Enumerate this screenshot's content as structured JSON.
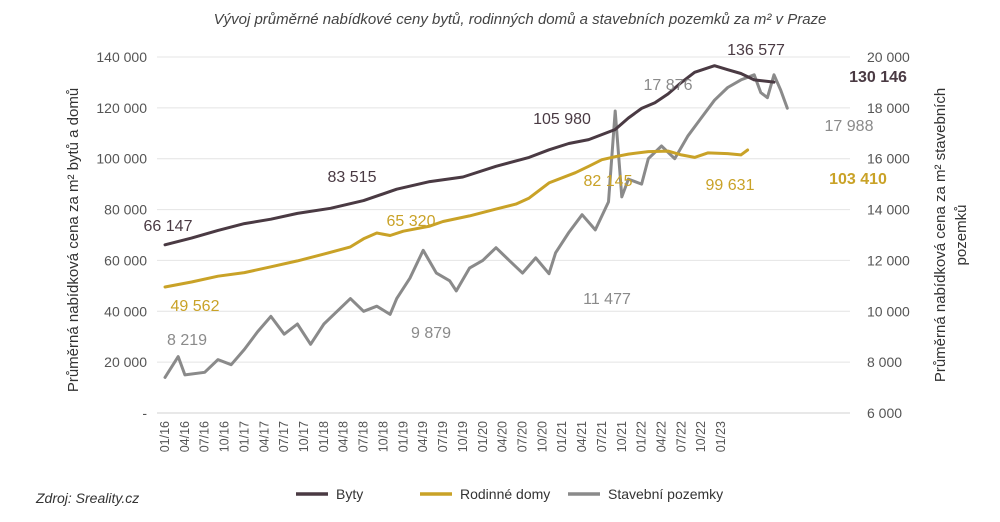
{
  "chart_data": {
    "type": "line",
    "title": "Vývoj průměrné nabídkové ceny bytů, rodinných domů a stavebních pozemků za m² v Praze",
    "source": "Zdroj: Sreality.cz",
    "ylabel_left": "Průměrná nabídková cena za m² bytů a domů",
    "ylabel_right_line1": "Průměrná nabídková cena za m² stavebních",
    "ylabel_right_line2": "pozemků",
    "y_left": {
      "min": 0,
      "max": 140000,
      "ticks": [
        0,
        20000,
        40000,
        60000,
        80000,
        100000,
        120000,
        140000
      ],
      "tick_labels": [
        "-",
        "20 000",
        "40 000",
        "60 000",
        "80 000",
        "100 000",
        "120 000",
        "140 000"
      ]
    },
    "y_right": {
      "min": 6000,
      "max": 20000,
      "ticks": [
        6000,
        8000,
        10000,
        12000,
        14000,
        16000,
        18000,
        20000
      ],
      "tick_labels": [
        "6 000",
        "8 000",
        "10 000",
        "12 000",
        "14 000",
        "16 000",
        "18 000",
        "20 000"
      ]
    },
    "x_labels": [
      "01/16",
      "04/16",
      "07/16",
      "10/16",
      "01/17",
      "04/17",
      "07/17",
      "10/17",
      "01/18",
      "04/18",
      "07/18",
      "10/18",
      "01/19",
      "04/19",
      "07/19",
      "10/19",
      "01/20",
      "04/20",
      "07/20",
      "10/20",
      "01/21",
      "04/21",
      "07/21",
      "10/21",
      "01/22",
      "04/22",
      "07/22",
      "10/22",
      "01/23"
    ],
    "months": 90,
    "grid": "horizontal",
    "legend_position": "bottom",
    "series": [
      {
        "name": "Byty",
        "axis": "left",
        "color": "#4a3a43",
        "keypoints": [
          [
            0,
            66147
          ],
          [
            4,
            68800
          ],
          [
            8,
            71800
          ],
          [
            12,
            74500
          ],
          [
            16,
            76200
          ],
          [
            20,
            78500
          ],
          [
            25,
            80500
          ],
          [
            30,
            83515
          ],
          [
            35,
            88000
          ],
          [
            40,
            91000
          ],
          [
            45,
            92800
          ],
          [
            50,
            97000
          ],
          [
            55,
            100500
          ],
          [
            58,
            103500
          ],
          [
            61,
            105980
          ],
          [
            64,
            107500
          ],
          [
            68,
            111500
          ],
          [
            70,
            116000
          ],
          [
            72,
            119800
          ],
          [
            74,
            122000
          ],
          [
            76,
            125500
          ],
          [
            78,
            130000
          ],
          [
            80,
            134000
          ],
          [
            83,
            136577
          ],
          [
            85,
            135000
          ],
          [
            87,
            133500
          ],
          [
            89,
            131000
          ],
          [
            92,
            130146
          ]
        ]
      },
      {
        "name": "Rodinné domy",
        "axis": "left",
        "color": "#c9a227",
        "keypoints": [
          [
            0,
            49562
          ],
          [
            4,
            51500
          ],
          [
            8,
            53800
          ],
          [
            12,
            55200
          ],
          [
            16,
            57500
          ],
          [
            20,
            59800
          ],
          [
            24,
            62500
          ],
          [
            28,
            65320
          ],
          [
            30,
            68500
          ],
          [
            32,
            70800
          ],
          [
            34,
            69800
          ],
          [
            36,
            71500
          ],
          [
            40,
            73500
          ],
          [
            42,
            75300
          ],
          [
            46,
            77500
          ],
          [
            50,
            80200
          ],
          [
            53,
            82145
          ],
          [
            55,
            84500
          ],
          [
            58,
            90500
          ],
          [
            62,
            94500
          ],
          [
            64,
            97000
          ],
          [
            66,
            99631
          ],
          [
            68,
            100800
          ],
          [
            70,
            101800
          ],
          [
            73,
            102800
          ],
          [
            76,
            103000
          ],
          [
            78,
            101500
          ],
          [
            80,
            100500
          ],
          [
            82,
            102300
          ],
          [
            85,
            102000
          ],
          [
            87,
            101500
          ],
          [
            88,
            103410
          ]
        ]
      },
      {
        "name": "Stavební pozemky",
        "axis": "right",
        "color": "#8a8a8a",
        "keypoints": [
          [
            0,
            7400
          ],
          [
            2,
            8219
          ],
          [
            3,
            7500
          ],
          [
            6,
            7600
          ],
          [
            8,
            8100
          ],
          [
            10,
            7900
          ],
          [
            12,
            8500
          ],
          [
            14,
            9200
          ],
          [
            16,
            9800
          ],
          [
            18,
            9100
          ],
          [
            20,
            9500
          ],
          [
            22,
            8700
          ],
          [
            24,
            9500
          ],
          [
            26,
            10000
          ],
          [
            28,
            10500
          ],
          [
            30,
            10000
          ],
          [
            32,
            10200
          ],
          [
            34,
            9879
          ],
          [
            35,
            10500
          ],
          [
            37,
            11300
          ],
          [
            39,
            12400
          ],
          [
            41,
            11500
          ],
          [
            43,
            11200
          ],
          [
            44,
            10800
          ],
          [
            46,
            11700
          ],
          [
            48,
            12000
          ],
          [
            50,
            12500
          ],
          [
            52,
            12000
          ],
          [
            54,
            11500
          ],
          [
            56,
            12100
          ],
          [
            58,
            11477
          ],
          [
            59,
            12300
          ],
          [
            61,
            13100
          ],
          [
            63,
            13800
          ],
          [
            65,
            13200
          ],
          [
            67,
            14300
          ],
          [
            68,
            17876
          ],
          [
            69,
            14500
          ],
          [
            70,
            15200
          ],
          [
            72,
            15000
          ],
          [
            73,
            16000
          ],
          [
            75,
            16500
          ],
          [
            77,
            16000
          ],
          [
            79,
            16900
          ],
          [
            81,
            17600
          ],
          [
            83,
            18300
          ],
          [
            85,
            18800
          ],
          [
            87,
            19100
          ],
          [
            89,
            19300
          ],
          [
            90,
            18600
          ],
          [
            91,
            18400
          ],
          [
            92,
            19300
          ],
          [
            93,
            18700
          ],
          [
            94,
            17988
          ]
        ]
      }
    ],
    "annotations": [
      {
        "series": "Byty",
        "label": "66 147"
      },
      {
        "series": "Byty",
        "label": "83 515"
      },
      {
        "series": "Byty",
        "label": "105 980"
      },
      {
        "series": "Byty",
        "label": "136 577"
      },
      {
        "series": "Byty",
        "label": "130 146"
      },
      {
        "series": "Rodinné domy",
        "label": "49 562"
      },
      {
        "series": "Rodinné domy",
        "label": "65 320"
      },
      {
        "series": "Rodinné domy",
        "label": "82 145"
      },
      {
        "series": "Rodinné domy",
        "label": "99 631"
      },
      {
        "series": "Rodinné domy",
        "label": "103 410"
      },
      {
        "series": "Stavební pozemky",
        "label": "8 219"
      },
      {
        "series": "Stavební pozemky",
        "label": "9 879"
      },
      {
        "series": "Stavební pozemky",
        "label": "11 477"
      },
      {
        "series": "Stavební pozemky",
        "label": "17 876"
      },
      {
        "series": "Stavební pozemky",
        "label": "17 988"
      }
    ]
  }
}
